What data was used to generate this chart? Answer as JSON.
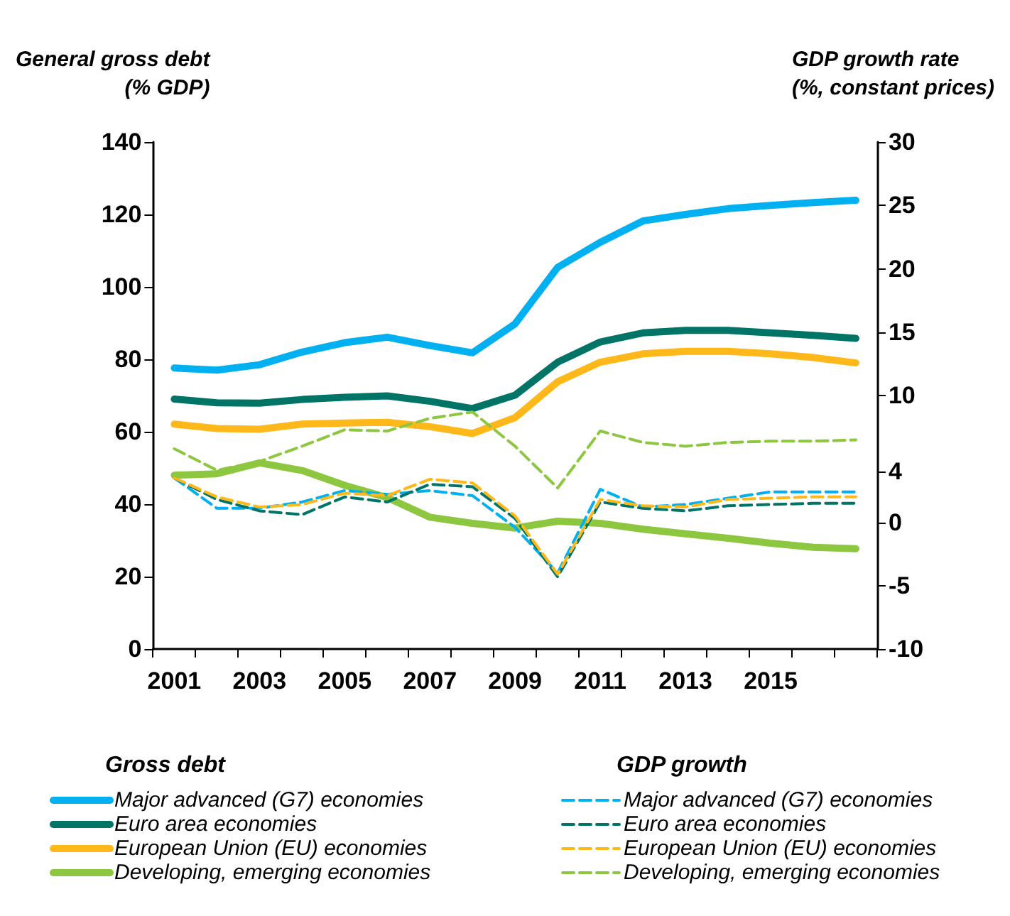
{
  "chart_data": {
    "type": "line",
    "ylabel": "General gross debt\n(% GDP)",
    "y2label": "GDP growth rate\n(%, constant prices)",
    "categories": [
      "2001",
      null,
      "2003",
      null,
      "2005",
      null,
      "2007",
      null,
      "2009",
      null,
      "2011",
      null,
      "2013",
      null,
      "2015",
      null,
      null
    ],
    "ylim": [
      0,
      140
    ],
    "yticks": [
      0,
      20,
      40,
      60,
      80,
      100,
      120,
      140
    ],
    "y2lim": [
      -10,
      30
    ],
    "y2ticks": [
      -10,
      -5,
      0,
      4,
      10,
      15,
      20,
      25,
      30
    ],
    "grid": false,
    "legend": "bottom",
    "marker": "none",
    "annotations": [
      "Gross debt",
      "GDP growth"
    ],
    "series": [
      {
        "name": "Major advanced (G7) economies",
        "color": "#00b0f0",
        "line_style": "solid",
        "values": [
          77.6,
          77.0,
          78.5,
          82.0,
          84.6,
          86.1,
          83.8,
          81.8,
          89.8,
          105.4,
          112.3,
          118.2,
          120.0,
          121.6,
          122.5,
          123.3,
          123.9
        ]
      },
      {
        "name": "Euro area economies",
        "color": "#007567",
        "line_style": "solid",
        "values": [
          69.0,
          68.0,
          67.9,
          68.9,
          69.5,
          69.9,
          68.4,
          66.4,
          70.1,
          79.2,
          84.8,
          87.3,
          88.0,
          88.0,
          87.3,
          86.6,
          85.8
        ]
      },
      {
        "name": "European Union (EU) economies",
        "color": "#ffb819",
        "line_style": "solid",
        "values": [
          62.1,
          60.9,
          60.7,
          62.1,
          62.4,
          62.6,
          61.4,
          59.5,
          63.9,
          73.8,
          79.2,
          81.5,
          82.2,
          82.2,
          81.5,
          80.5,
          79.0
        ]
      },
      {
        "name": "Developing, emerging economies",
        "color": "#8dc63f",
        "line_style": "solid",
        "values": [
          48.0,
          48.4,
          51.4,
          49.3,
          45.2,
          41.8,
          36.4,
          34.7,
          33.4,
          35.3,
          34.7,
          33.1,
          31.8,
          30.6,
          29.2,
          28.1,
          27.7
        ]
      },
      {
        "name": "Major advanced (G7) economies",
        "color": "#00b0f0",
        "line_style": "dashed",
        "axis": "y2",
        "values": [
          3.5,
          1.1,
          1.1,
          1.6,
          2.5,
          2.2,
          2.5,
          2.1,
          -0.4,
          -4.0,
          2.6,
          1.2,
          1.4,
          1.9,
          2.4,
          2.4,
          2.4
        ]
      },
      {
        "name": "Euro area economies",
        "color": "#007567",
        "line_style": "dashed",
        "axis": "y2",
        "values": [
          3.5,
          1.8,
          0.9,
          0.6,
          2.0,
          1.6,
          3.0,
          2.8,
          0.3,
          -4.3,
          1.6,
          1.1,
          0.9,
          1.3,
          1.4,
          1.5,
          1.5
        ]
      },
      {
        "name": "European Union (EU) economies",
        "color": "#ffb819",
        "line_style": "dashed",
        "axis": "y2",
        "values": [
          3.5,
          2.0,
          1.2,
          1.4,
          2.3,
          2.1,
          3.4,
          3.1,
          0.5,
          -4.1,
          1.8,
          1.3,
          1.2,
          1.8,
          1.9,
          2.0,
          2.0
        ]
      },
      {
        "name": "Developing, emerging economies",
        "color": "#8dc63f",
        "line_style": "dashed",
        "axis": "y2",
        "values": [
          5.8,
          4.1,
          4.8,
          6.0,
          7.3,
          7.2,
          8.2,
          8.7,
          6.0,
          2.7,
          7.2,
          6.3,
          6.0,
          6.3,
          6.4,
          6.4,
          6.5
        ]
      }
    ]
  }
}
